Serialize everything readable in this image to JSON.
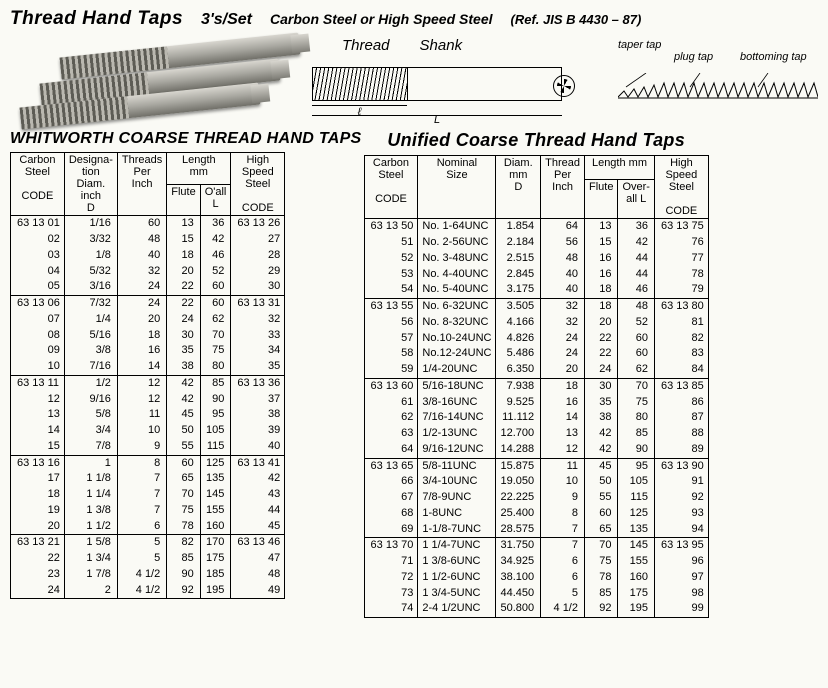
{
  "header": {
    "title": "Thread Hand Taps",
    "set": "3's/Set",
    "material": "Carbon Steel or  High Speed Steel",
    "ref": "(Ref. JIS B 4430 – 87)"
  },
  "diagram": {
    "thread_label": "Thread",
    "shank_label": "Shank",
    "small_l": "ℓ",
    "big_L": "L",
    "style1": "taper tap",
    "style2": "plug tap",
    "style3": "bottoming tap"
  },
  "whitworth": {
    "title": "WHITWORTH COARSE THREAD HAND TAPS",
    "head": {
      "cs": "Carbon\nSteel",
      "desig": "Designa-\ntion\nDiam.\ninch\nD",
      "tpi": "Threads\nPer\nInch",
      "len": "Length\nmm",
      "flute": "Flute",
      "oall": "O'all\nL",
      "hss": "High\nSpeed\nSteel",
      "code": "CODE"
    },
    "groups": [
      [
        {
          "cs": "63 13 01",
          "d": "1/16",
          "tpi": "60",
          "f": "13",
          "l": "36",
          "hss": "63 13 26"
        },
        {
          "cs": "02",
          "d": "3/32",
          "tpi": "48",
          "f": "15",
          "l": "42",
          "hss": "27"
        },
        {
          "cs": "03",
          "d": "1/8",
          "tpi": "40",
          "f": "18",
          "l": "46",
          "hss": "28"
        },
        {
          "cs": "04",
          "d": "5/32",
          "tpi": "32",
          "f": "20",
          "l": "52",
          "hss": "29"
        },
        {
          "cs": "05",
          "d": "3/16",
          "tpi": "24",
          "f": "22",
          "l": "60",
          "hss": "30"
        }
      ],
      [
        {
          "cs": "63 13 06",
          "d": "7/32",
          "tpi": "24",
          "f": "22",
          "l": "60",
          "hss": "63 13 31"
        },
        {
          "cs": "07",
          "d": "1/4",
          "tpi": "20",
          "f": "24",
          "l": "62",
          "hss": "32"
        },
        {
          "cs": "08",
          "d": "5/16",
          "tpi": "18",
          "f": "30",
          "l": "70",
          "hss": "33"
        },
        {
          "cs": "09",
          "d": "3/8",
          "tpi": "16",
          "f": "35",
          "l": "75",
          "hss": "34"
        },
        {
          "cs": "10",
          "d": "7/16",
          "tpi": "14",
          "f": "38",
          "l": "80",
          "hss": "35"
        }
      ],
      [
        {
          "cs": "63 13 11",
          "d": "1/2",
          "tpi": "12",
          "f": "42",
          "l": "85",
          "hss": "63 13 36"
        },
        {
          "cs": "12",
          "d": "9/16",
          "tpi": "12",
          "f": "42",
          "l": "90",
          "hss": "37"
        },
        {
          "cs": "13",
          "d": "5/8",
          "tpi": "11",
          "f": "45",
          "l": "95",
          "hss": "38"
        },
        {
          "cs": "14",
          "d": "3/4",
          "tpi": "10",
          "f": "50",
          "l": "105",
          "hss": "39"
        },
        {
          "cs": "15",
          "d": "7/8",
          "tpi": "9",
          "f": "55",
          "l": "115",
          "hss": "40"
        }
      ],
      [
        {
          "cs": "63 13 16",
          "d": "1",
          "tpi": "8",
          "f": "60",
          "l": "125",
          "hss": "63 13 41"
        },
        {
          "cs": "17",
          "d": "1 1/8",
          "tpi": "7",
          "f": "65",
          "l": "135",
          "hss": "42"
        },
        {
          "cs": "18",
          "d": "1 1/4",
          "tpi": "7",
          "f": "70",
          "l": "145",
          "hss": "43"
        },
        {
          "cs": "19",
          "d": "1 3/8",
          "tpi": "7",
          "f": "75",
          "l": "155",
          "hss": "44"
        },
        {
          "cs": "20",
          "d": "1 1/2",
          "tpi": "6",
          "f": "78",
          "l": "160",
          "hss": "45"
        }
      ],
      [
        {
          "cs": "63 13 21",
          "d": "1 5/8",
          "tpi": "5",
          "f": "82",
          "l": "170",
          "hss": "63 13 46"
        },
        {
          "cs": "22",
          "d": "1 3/4",
          "tpi": "5",
          "f": "85",
          "l": "175",
          "hss": "47"
        },
        {
          "cs": "23",
          "d": "1 7/8",
          "tpi": "4 1/2",
          "f": "90",
          "l": "185",
          "hss": "48"
        },
        {
          "cs": "24",
          "d": "2",
          "tpi": "4 1/2",
          "f": "92",
          "l": "195",
          "hss": "49"
        }
      ]
    ]
  },
  "unified": {
    "title": "Unified Coarse Thread Hand Taps",
    "head": {
      "cs": "Carbon\nSteel",
      "nom": "Nominal\nSize",
      "diam": "Diam.\nmm\nD",
      "tpi": "Thread\nPer\nInch",
      "len": "Length mm",
      "flute": "Flute",
      "oall": "Over-\nall L",
      "hss": "High\nSpeed\nSteel",
      "code": "CODE"
    },
    "groups": [
      [
        {
          "cs": "63 13 50",
          "nom": "No.  1-64UNC",
          "d": "1.854",
          "tpi": "64",
          "f": "13",
          "l": "36",
          "hss": "63 13 75"
        },
        {
          "cs": "51",
          "nom": "No.  2-56UNC",
          "d": "2.184",
          "tpi": "56",
          "f": "15",
          "l": "42",
          "hss": "76"
        },
        {
          "cs": "52",
          "nom": "No.  3-48UNC",
          "d": "2.515",
          "tpi": "48",
          "f": "16",
          "l": "44",
          "hss": "77"
        },
        {
          "cs": "53",
          "nom": "No.  4-40UNC",
          "d": "2.845",
          "tpi": "40",
          "f": "16",
          "l": "44",
          "hss": "78"
        },
        {
          "cs": "54",
          "nom": "No.  5-40UNC",
          "d": "3.175",
          "tpi": "40",
          "f": "18",
          "l": "46",
          "hss": "79"
        }
      ],
      [
        {
          "cs": "63 13 55",
          "nom": "No.  6-32UNC",
          "d": "3.505",
          "tpi": "32",
          "f": "18",
          "l": "48",
          "hss": "63 13 80"
        },
        {
          "cs": "56",
          "nom": "No.  8-32UNC",
          "d": "4.166",
          "tpi": "32",
          "f": "20",
          "l": "52",
          "hss": "81"
        },
        {
          "cs": "57",
          "nom": "No.10-24UNC",
          "d": "4.826",
          "tpi": "24",
          "f": "22",
          "l": "60",
          "hss": "82"
        },
        {
          "cs": "58",
          "nom": "No.12-24UNC",
          "d": "5.486",
          "tpi": "24",
          "f": "22",
          "l": "60",
          "hss": "83"
        },
        {
          "cs": "59",
          "nom": "1/4-20UNC",
          "d": "6.350",
          "tpi": "20",
          "f": "24",
          "l": "62",
          "hss": "84"
        }
      ],
      [
        {
          "cs": "63 13 60",
          "nom": "5/16-18UNC",
          "d": "7.938",
          "tpi": "18",
          "f": "30",
          "l": "70",
          "hss": "63 13 85"
        },
        {
          "cs": "61",
          "nom": "3/8-16UNC",
          "d": "9.525",
          "tpi": "16",
          "f": "35",
          "l": "75",
          "hss": "86"
        },
        {
          "cs": "62",
          "nom": "7/16-14UNC",
          "d": "11.112",
          "tpi": "14",
          "f": "38",
          "l": "80",
          "hss": "87"
        },
        {
          "cs": "63",
          "nom": "1/2-13UNC",
          "d": "12.700",
          "tpi": "13",
          "f": "42",
          "l": "85",
          "hss": "88"
        },
        {
          "cs": "64",
          "nom": "9/16-12UNC",
          "d": "14.288",
          "tpi": "12",
          "f": "42",
          "l": "90",
          "hss": "89"
        }
      ],
      [
        {
          "cs": "63 13 65",
          "nom": "5/8-11UNC",
          "d": "15.875",
          "tpi": "11",
          "f": "45",
          "l": "95",
          "hss": "63 13 90"
        },
        {
          "cs": "66",
          "nom": "3/4-10UNC",
          "d": "19.050",
          "tpi": "10",
          "f": "50",
          "l": "105",
          "hss": "91"
        },
        {
          "cs": "67",
          "nom": "7/8-9UNC",
          "d": "22.225",
          "tpi": "9",
          "f": "55",
          "l": "115",
          "hss": "92"
        },
        {
          "cs": "68",
          "nom": "1-8UNC",
          "d": "25.400",
          "tpi": "8",
          "f": "60",
          "l": "125",
          "hss": "93"
        },
        {
          "cs": "69",
          "nom": "1-1/8-7UNC",
          "d": "28.575",
          "tpi": "7",
          "f": "65",
          "l": "135",
          "hss": "94"
        }
      ],
      [
        {
          "cs": "63 13 70",
          "nom": "1 1/4-7UNC",
          "d": "31.750",
          "tpi": "7",
          "f": "70",
          "l": "145",
          "hss": "63 13 95"
        },
        {
          "cs": "71",
          "nom": "1 3/8-6UNC",
          "d": "34.925",
          "tpi": "6",
          "f": "75",
          "l": "155",
          "hss": "96"
        },
        {
          "cs": "72",
          "nom": "1 1/2-6UNC",
          "d": "38.100",
          "tpi": "6",
          "f": "78",
          "l": "160",
          "hss": "97"
        },
        {
          "cs": "73",
          "nom": "1 3/4-5UNC",
          "d": "44.450",
          "tpi": "5",
          "f": "85",
          "l": "175",
          "hss": "98"
        },
        {
          "cs": "74",
          "nom": "2-4 1/2UNC",
          "d": "50.800",
          "tpi": "4 1/2",
          "f": "92",
          "l": "195",
          "hss": "99"
        }
      ]
    ]
  }
}
